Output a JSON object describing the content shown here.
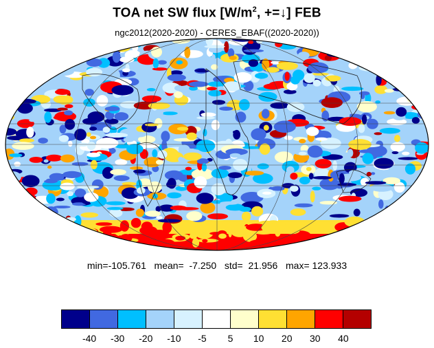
{
  "title": {
    "main": "TOA net SW flux [W/m",
    "sup": "2",
    "rest": ", +=↓]  FEB"
  },
  "subtitle": "ngc2012(2020-2020) - CERES_EBAF((2020-2020))",
  "stats": {
    "text": "min=-105.761   mean=  -7.250   std=  21.956   max= 123.933",
    "min": -105.761,
    "mean": -7.25,
    "std": 21.956,
    "max": 123.933
  },
  "colorbar": {
    "colors": [
      "#00008b",
      "#4169e1",
      "#00bfff",
      "#a4d3fa",
      "#d7f2ff",
      "#ffffff",
      "#ffffcc",
      "#ffe033",
      "#ffa500",
      "#ff0000",
      "#b40000"
    ],
    "labels": [
      "-40",
      "-30",
      "-20",
      "-10",
      "-5",
      "5",
      "10",
      "20",
      "30",
      "40"
    ]
  },
  "map": {
    "projection": "Mollweide",
    "field": "difference",
    "ocean_background": "#a4d3fa"
  }
}
